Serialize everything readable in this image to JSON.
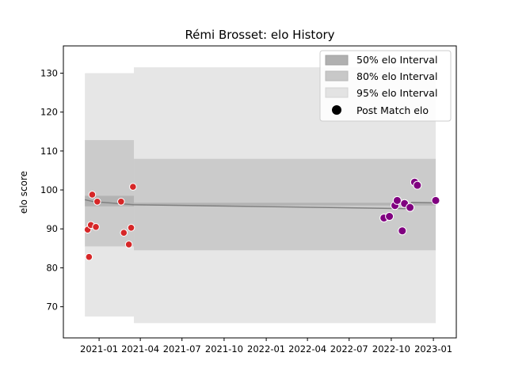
{
  "chart_data": {
    "type": "scatter",
    "title": "Rémi Brosset: elo History",
    "xlabel": "",
    "ylabel": "elo score",
    "xlim": [
      "2020-10-15",
      "2023-02-20"
    ],
    "ylim": [
      62,
      137
    ],
    "x_ticks": [
      "2021-01",
      "2021-04",
      "2021-07",
      "2021-10",
      "2022-01",
      "2022-04",
      "2022-07",
      "2022-10",
      "2023-01"
    ],
    "y_ticks": [
      70,
      80,
      90,
      100,
      110,
      120,
      130
    ],
    "grid": false,
    "legend": {
      "position": "top-right",
      "items": [
        "50% elo Interval",
        "80% elo Interval",
        "95% elo Interval",
        "Post Match elo"
      ]
    },
    "colors": {
      "band50": "#b0b0b0",
      "band80": "#c8c8c8",
      "band95": "#e3e3e3",
      "mean_line": "#808080",
      "points_early": "#d62728",
      "points_late": "#800080"
    },
    "series": [
      {
        "name": "Post Match elo",
        "points": [
          {
            "date": "2020-12-07",
            "elo": 89.8,
            "group": "early"
          },
          {
            "date": "2020-12-10",
            "elo": 82.8,
            "group": "early"
          },
          {
            "date": "2020-12-14",
            "elo": 91.0,
            "group": "early"
          },
          {
            "date": "2020-12-17",
            "elo": 98.8,
            "group": "early"
          },
          {
            "date": "2020-12-25",
            "elo": 90.5,
            "group": "early"
          },
          {
            "date": "2020-12-28",
            "elo": 97.0,
            "group": "early"
          },
          {
            "date": "2021-02-18",
            "elo": 97.0,
            "group": "early"
          },
          {
            "date": "2021-02-24",
            "elo": 89.0,
            "group": "early"
          },
          {
            "date": "2021-03-07",
            "elo": 86.0,
            "group": "early"
          },
          {
            "date": "2021-03-12",
            "elo": 90.3,
            "group": "early"
          },
          {
            "date": "2021-03-16",
            "elo": 100.8,
            "group": "early"
          },
          {
            "date": "2022-09-15",
            "elo": 92.8,
            "group": "late"
          },
          {
            "date": "2022-09-27",
            "elo": 93.2,
            "group": "late"
          },
          {
            "date": "2022-10-09",
            "elo": 96.0,
            "group": "late"
          },
          {
            "date": "2022-10-14",
            "elo": 97.3,
            "group": "late"
          },
          {
            "date": "2022-10-25",
            "elo": 89.5,
            "group": "late"
          },
          {
            "date": "2022-10-30",
            "elo": 96.5,
            "group": "late"
          },
          {
            "date": "2022-11-11",
            "elo": 95.5,
            "group": "late"
          },
          {
            "date": "2022-11-21",
            "elo": 102.0,
            "group": "late"
          },
          {
            "date": "2022-11-27",
            "elo": 101.2,
            "group": "late"
          },
          {
            "date": "2023-01-06",
            "elo": 97.3,
            "group": "late"
          }
        ]
      },
      {
        "name": "mean",
        "points": [
          {
            "date": "2020-12-01",
            "elo": 97.5
          },
          {
            "date": "2020-12-20",
            "elo": 97.0
          },
          {
            "date": "2021-03-18",
            "elo": 96.2
          },
          {
            "date": "2022-10-31",
            "elo": 95.2
          },
          {
            "date": "2022-11-15",
            "elo": 96.8
          },
          {
            "date": "2023-01-06",
            "elo": 96.7
          }
        ]
      },
      {
        "name": "50% elo Interval",
        "bands": [
          {
            "dates": [
              "2020-12-01",
              "2021-03-18"
            ],
            "lo": 95.8,
            "hi": 98.5
          },
          {
            "dates": [
              "2021-03-18",
              "2023-01-06"
            ],
            "lo": 96.0,
            "hi": 96.7
          }
        ]
      },
      {
        "name": "80% elo Interval",
        "bands": [
          {
            "dates": [
              "2020-12-01",
              "2021-03-18"
            ],
            "lo": 85.5,
            "hi": 112.8
          },
          {
            "dates": [
              "2021-03-18",
              "2023-01-06"
            ],
            "lo": 84.5,
            "hi": 108.0
          }
        ]
      },
      {
        "name": "95% elo Interval",
        "bands": [
          {
            "dates": [
              "2020-12-01",
              "2021-03-18"
            ],
            "lo": 67.5,
            "hi": 130.0
          },
          {
            "dates": [
              "2021-03-18",
              "2023-01-06"
            ],
            "lo": 65.8,
            "hi": 131.5
          }
        ]
      }
    ]
  }
}
